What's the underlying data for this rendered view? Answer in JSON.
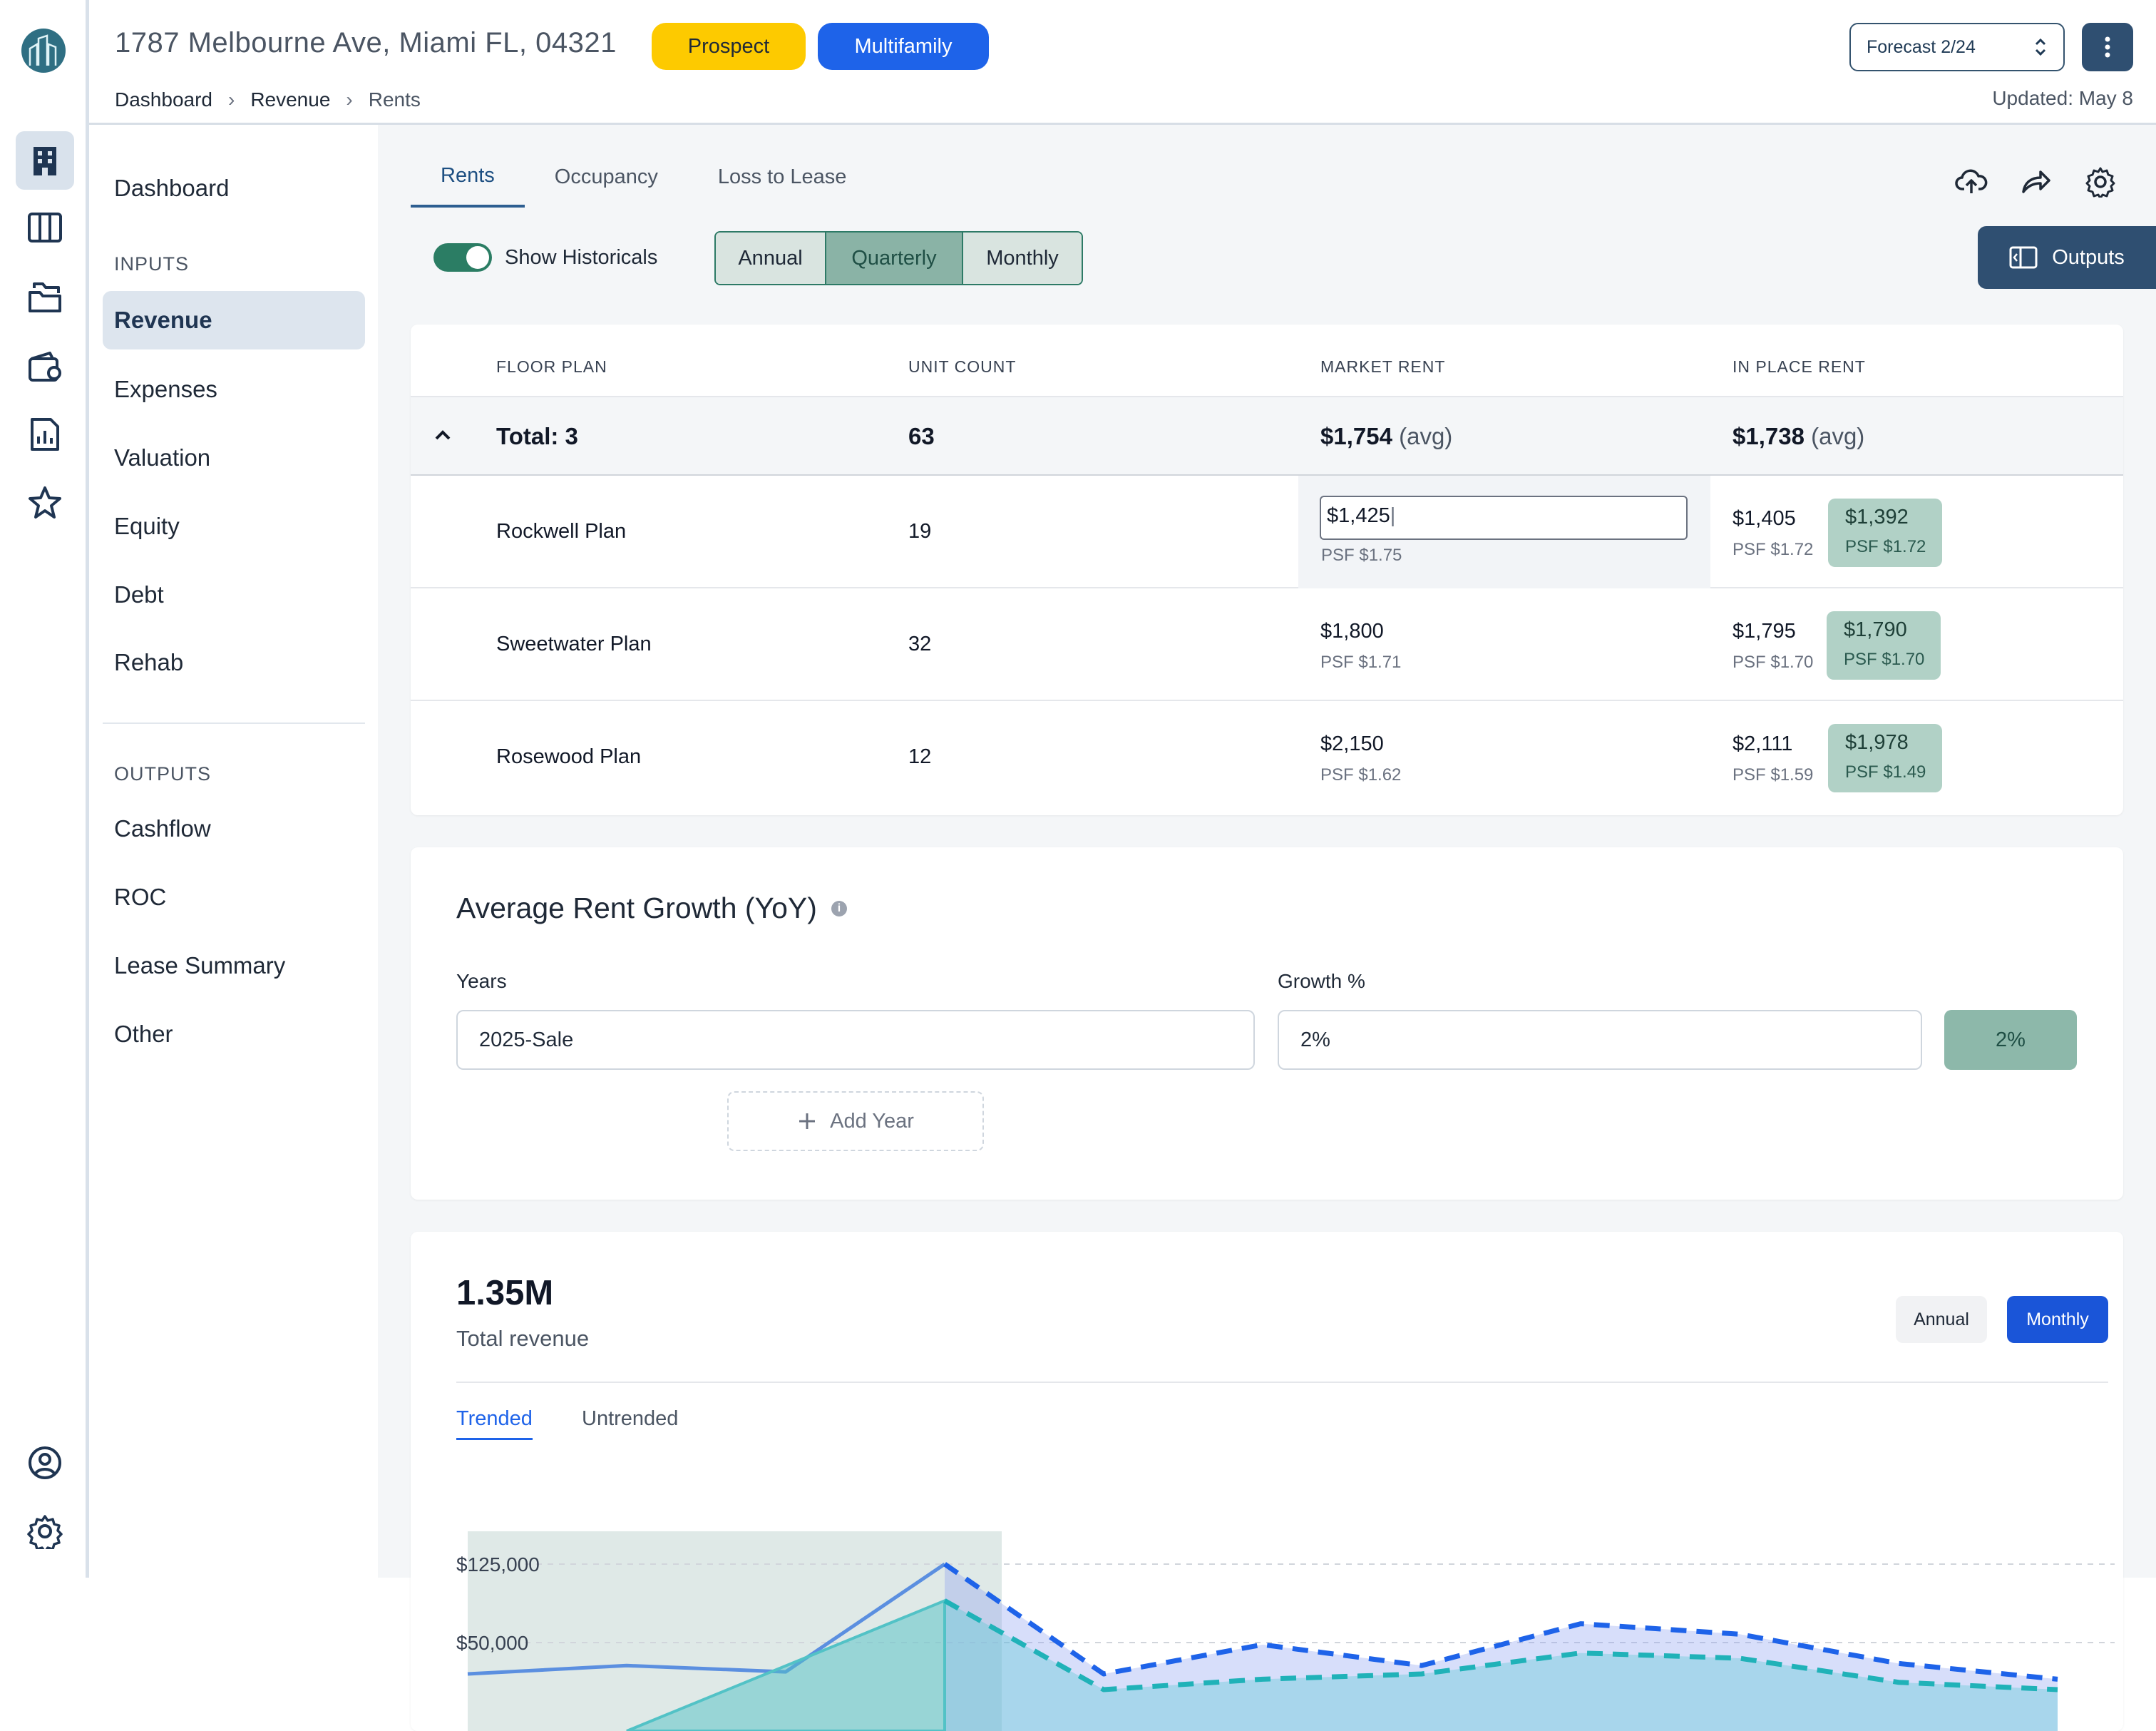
{
  "header": {
    "address": "1787 Melbourne Ave, Miami FL, 04321",
    "badge_prospect": "Prospect",
    "badge_multifamily": "Multifamily",
    "forecast": "Forecast 2/24",
    "updated": "Updated: May 8",
    "breadcrumb": [
      "Dashboard",
      "Revenue",
      "Rents"
    ],
    "colors": {
      "prospect": "#fdca00",
      "multifamily": "#1e63e9",
      "accent": "#2f4f71"
    }
  },
  "rail": {
    "icons": [
      "building-icon",
      "columns-icon",
      "folders-icon",
      "wallet-icon",
      "report-icon",
      "star-icon",
      "user-circle-icon",
      "settings-icon"
    ]
  },
  "sidenav": {
    "dashboard": "Dashboard",
    "inputs_heading": "INPUTS",
    "inputs": [
      "Revenue",
      "Expenses",
      "Valuation",
      "Equity",
      "Debt",
      "Rehab"
    ],
    "outputs_heading": "OUTPUTS",
    "outputs": [
      "Cashflow",
      "ROC",
      "Lease Summary",
      "Other"
    ]
  },
  "tabs": [
    "Rents",
    "Occupancy",
    "Loss to Lease"
  ],
  "toolbar": {
    "show_historicals": "Show Historicals",
    "show_historicals_on": true,
    "periods": [
      "Annual",
      "Quarterly",
      "Monthly"
    ],
    "selected_period": "Quarterly",
    "outputs_label": "Outputs"
  },
  "rent_table": {
    "headers": [
      "FLOOR PLAN",
      "UNIT COUNT",
      "MARKET RENT",
      "IN PLACE RENT"
    ],
    "total": {
      "label": "Total: 3",
      "units": "63",
      "market": "$1,754",
      "market_suffix": "(avg)",
      "in_place": "$1,738",
      "in_place_suffix": "(avg)"
    },
    "rows": [
      {
        "plan": "Rockwell Plan",
        "units": "19",
        "market": "$1,425",
        "market_psf": "PSF $1.75",
        "in_place": "$1,405",
        "in_place_psf": "PSF $1.72",
        "chip": "$1,392",
        "chip_psf": "PSF $1.72",
        "editing": true
      },
      {
        "plan": "Sweetwater Plan",
        "units": "32",
        "market": "$1,800",
        "market_psf": "PSF $1.71",
        "in_place": "$1,795",
        "in_place_psf": "PSF $1.70",
        "chip": "$1,790",
        "chip_psf": "PSF $1.70"
      },
      {
        "plan": "Rosewood Plan",
        "units": "12",
        "market": "$2,150",
        "market_psf": "PSF $1.62",
        "in_place": "$2,111",
        "in_place_psf": "PSF $1.59",
        "chip": "$1,978",
        "chip_psf": "PSF $1.49"
      }
    ]
  },
  "growth": {
    "title": "Average Rent Growth (YoY)",
    "years_label": "Years",
    "growth_label": "Growth %",
    "years_value": "2025-Sale",
    "growth_value": "2%",
    "growth_chip": "2%",
    "add_year": "Add Year"
  },
  "revenue": {
    "total": "1.35M",
    "total_label": "Total revenue",
    "period_annual": "Annual",
    "period_monthly": "Monthly",
    "tab_trended": "Trended",
    "tab_untrended": "Untrended"
  },
  "chart_data": {
    "type": "area",
    "y_ticks": [
      "$125,000",
      "$50,000"
    ],
    "series": [
      {
        "style": "solid",
        "color": "#5b8fe0",
        "values": [
          20000,
          28000,
          22000,
          125000,
          null,
          null,
          null,
          null,
          null,
          null,
          null
        ]
      },
      {
        "style": "solid",
        "color": "#52c2c6",
        "values": [
          null,
          null,
          null,
          90000,
          null,
          null,
          null,
          null,
          null,
          null,
          null
        ]
      },
      {
        "style": "dashed",
        "color": "#1e63e9",
        "values": [
          null,
          null,
          null,
          125000,
          20000,
          48000,
          28000,
          68000,
          58000,
          30000,
          15000
        ]
      },
      {
        "style": "dashed",
        "color": "#20b2b8",
        "values": [
          null,
          null,
          null,
          90000,
          5000,
          15000,
          20000,
          40000,
          35000,
          12000,
          5000
        ]
      }
    ],
    "historical_region": {
      "x_start": 0,
      "x_end": 3
    }
  }
}
